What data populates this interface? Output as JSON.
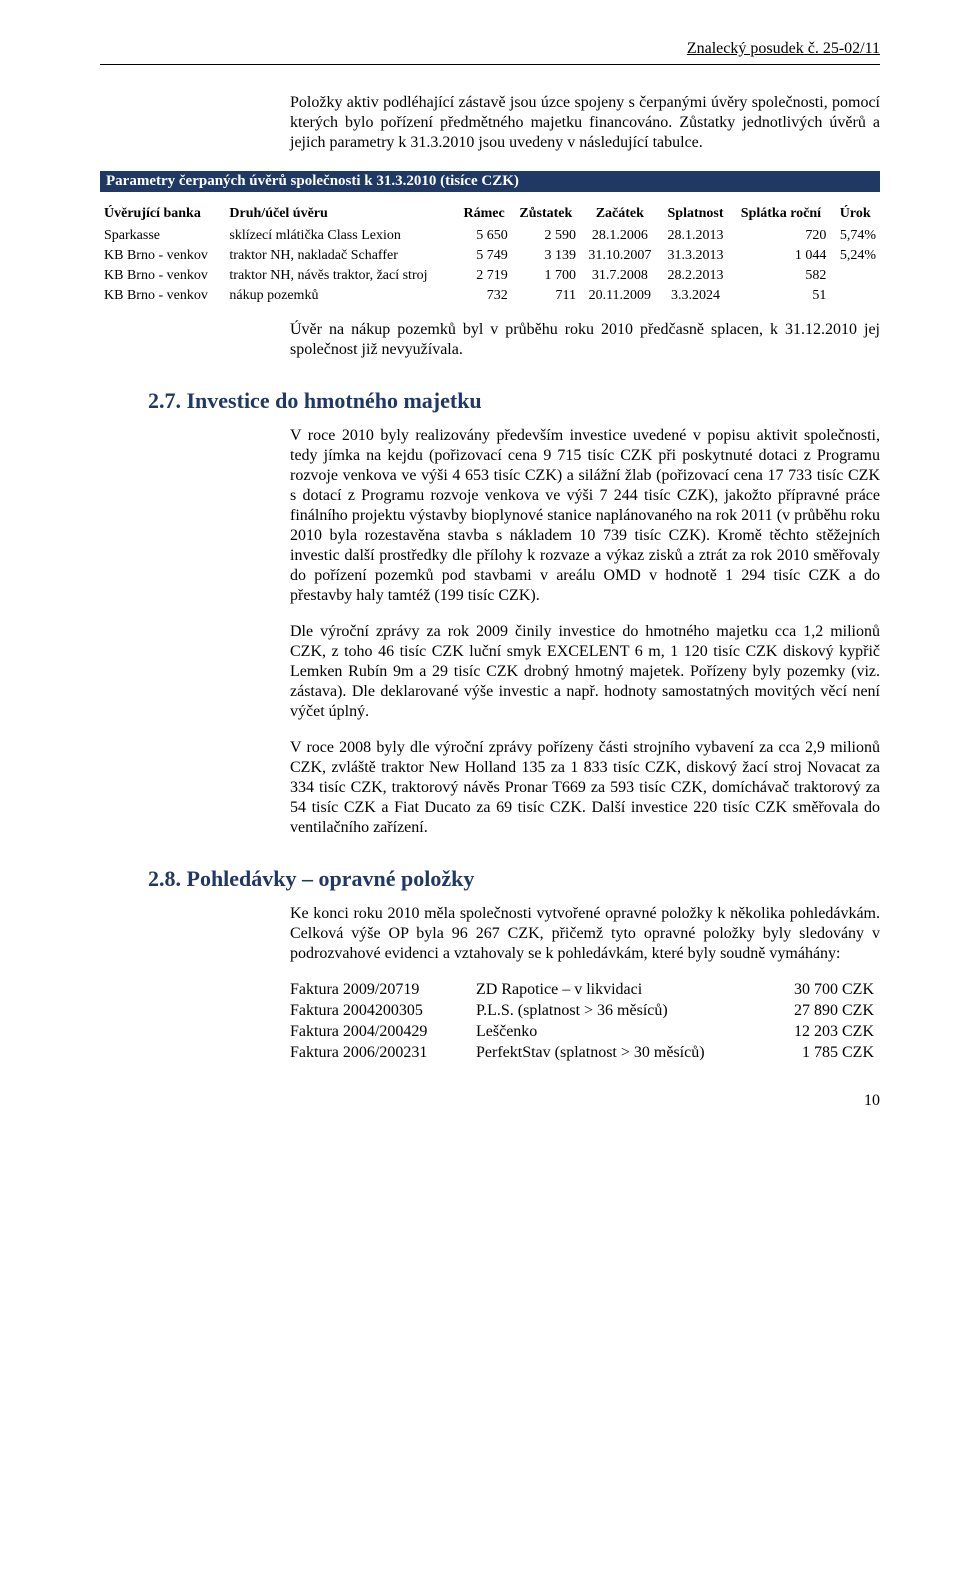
{
  "header": {
    "doc_ref": "Znalecký posudek č. 25-02/11"
  },
  "intro": {
    "p1": "Položky aktiv podléhající zástavě jsou úzce spojeny s čerpanými úvěry společnosti, pomocí kterých bylo pořízení předmětného majetku financováno. Zůstatky jednotlivých úvěrů a jejich parametry k 31.3.2010 jsou uvedeny v následující tabulce."
  },
  "loans": {
    "bar_title": "Parametry čerpaných úvěrů společnosti k 31.3.2010 (tisíce CZK)",
    "headers": {
      "bank": "Úvěrující banka",
      "purpose": "Druh/účel úvěru",
      "ramec": "Rámec",
      "zustatek": "Zůstatek",
      "zacatek": "Začátek",
      "splatnost": "Splatnost",
      "splatka": "Splátka roční",
      "urok": "Úrok"
    },
    "rows": [
      {
        "bank": "Sparkasse",
        "purpose": "sklízecí mlátička Class Lexion",
        "ramec": "5 650",
        "zustatek": "2 590",
        "zacatek": "28.1.2006",
        "splatnost": "28.1.2013",
        "splatka": "720",
        "urok": "5,74%"
      },
      {
        "bank": "KB Brno - venkov",
        "purpose": "traktor NH, nakladač Schaffer",
        "ramec": "5 749",
        "zustatek": "3 139",
        "zacatek": "31.10.2007",
        "splatnost": "31.3.2013",
        "splatka": "1 044",
        "urok": "5,24%"
      },
      {
        "bank": "KB Brno - venkov",
        "purpose": "traktor NH, návěs traktor, žací stroj",
        "ramec": "2 719",
        "zustatek": "1 700",
        "zacatek": "31.7.2008",
        "splatnost": "28.2.2013",
        "splatka": "582",
        "urok": ""
      },
      {
        "bank": "KB Brno - venkov",
        "purpose": "nákup pozemků",
        "ramec": "732",
        "zustatek": "711",
        "zacatek": "20.11.2009",
        "splatnost": "3.3.2024",
        "splatka": "51",
        "urok": ""
      }
    ],
    "note": "Úvěr na nákup pozemků byl v průběhu roku 2010 předčasně splacen, k 31.12.2010 jej společnost již nevyužívala."
  },
  "s27": {
    "title": "2.7. Investice do hmotného majetku",
    "p1": "V roce 2010 byly realizovány především investice uvedené v popisu aktivit společnosti, tedy jímka na kejdu (pořizovací cena 9 715 tisíc CZK při poskytnuté dotaci z Programu rozvoje venkova ve výši 4 653 tisíc CZK) a silážní žlab (pořizovací cena 17 733 tisíc CZK s dotací z Programu rozvoje venkova ve výši 7 244 tisíc CZK), jakožto přípravné práce finálního projektu výstavby bioplynové stanice naplánovaného na rok 2011 (v průběhu roku 2010 byla rozestavěna stavba s nákladem 10 739 tisíc CZK). Kromě těchto stěžejních investic další prostředky dle přílohy k rozvaze a výkaz zisků a ztrát za rok 2010 směřovaly do pořízení pozemků pod stavbami v areálu OMD v hodnotě 1 294 tisíc CZK a do přestavby haly tamtéž (199 tisíc CZK).",
    "p2": "Dle výroční zprávy za rok 2009 činily investice do hmotného majetku cca 1,2 milionů CZK, z toho 46 tisíc CZK luční smyk EXCELENT 6 m, 1 120 tisíc CZK diskový kypřič Lemken Rubín 9m a 29 tisíc CZK drobný hmotný majetek. Pořízeny byly pozemky (viz. zástava). Dle deklarované výše investic a např. hodnoty samostatných movitých věcí není výčet úplný.",
    "p3": "V roce 2008 byly dle výroční zprávy pořízeny části strojního vybavení za cca 2,9 milionů CZK, zvláště traktor New Holland 135 za 1 833 tisíc CZK, diskový žací stroj Novacat za 334 tisíc CZK, traktorový návěs Pronar T669 za 593 tisíc CZK, domíchávač traktorový za 54 tisíc CZK a Fiat Ducato za 69 tisíc CZK. Další investice 220 tisíc CZK směřovala do ventilačního zařízení."
  },
  "s28": {
    "title": "2.8. Pohledávky – opravné položky",
    "p1": "Ke konci roku 2010 měla společnosti vytvořené opravné položky k několika pohledávkám. Celková výše OP byla 96 267 CZK, přičemž tyto opravné položky byly sledovány v podrozvahové evidenci a vztahovaly se k pohledávkám, které byly soudně vymáhány:",
    "invoices": [
      {
        "no": "Faktura 2009/20719",
        "party": "ZD Rapotice – v likvidaci",
        "amount": "30 700 CZK"
      },
      {
        "no": "Faktura 2004200305",
        "party": "P.L.S. (splatnost > 36 měsíců)",
        "amount": "27 890 CZK"
      },
      {
        "no": "Faktura 2004/200429",
        "party": "Leščenko",
        "amount": "12 203 CZK"
      },
      {
        "no": "Faktura 2006/200231",
        "party": "PerfektStav (splatnost > 30 měsíců)",
        "amount": "1 785 CZK"
      }
    ]
  },
  "page_number": "10"
}
